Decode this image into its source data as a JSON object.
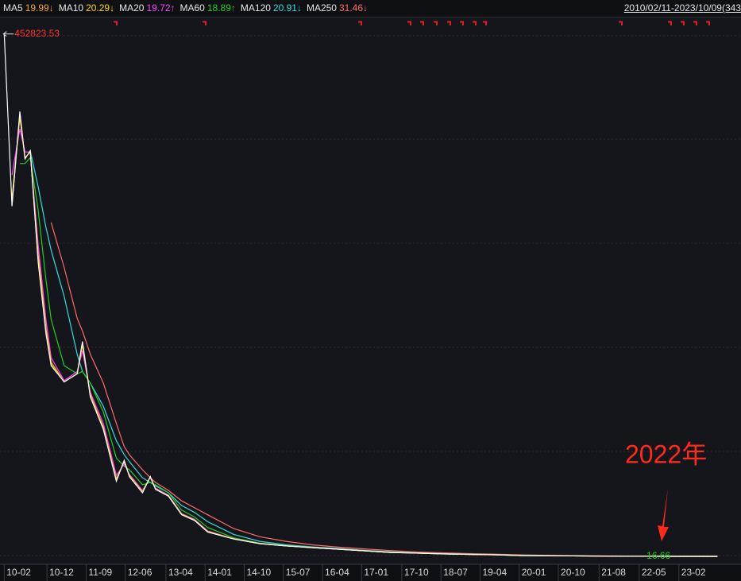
{
  "chart_data": {
    "type": "line",
    "date_range": "2010/02/11-2023/10/09(343",
    "x": [
      2010.1,
      2010.25,
      2010.4,
      2010.5,
      2010.6,
      2010.75,
      2010.9,
      2011.0,
      2011.25,
      2011.5,
      2011.6,
      2011.75,
      2012.0,
      2012.25,
      2012.4,
      2012.5,
      2012.75,
      2012.9,
      2013.0,
      2013.25,
      2013.5,
      2013.75,
      2014.0,
      2014.5,
      2015.0,
      2015.5,
      2016.0,
      2016.5,
      2017.0,
      2017.5,
      2018.0,
      2018.5,
      2019.0,
      2019.5,
      2020.0,
      2020.5,
      2021.0,
      2021.5,
      2022.0,
      2022.5,
      2023.0,
      2023.5,
      2023.77
    ],
    "xlim": [
      2010.02,
      2024.22
    ],
    "xticks": [
      {
        "value": 2010.1,
        "label": "10-02"
      },
      {
        "value": 2010.92,
        "label": "10-12"
      },
      {
        "value": 2011.67,
        "label": "11-09"
      },
      {
        "value": 2012.42,
        "label": "12-06"
      },
      {
        "value": 2013.2,
        "label": "13-04"
      },
      {
        "value": 2013.95,
        "label": "14-01"
      },
      {
        "value": 2014.7,
        "label": "14-10"
      },
      {
        "value": 2015.45,
        "label": "15-07"
      },
      {
        "value": 2016.2,
        "label": "16-04"
      },
      {
        "value": 2016.95,
        "label": "17-01"
      },
      {
        "value": 2017.72,
        "label": "17-10"
      },
      {
        "value": 2018.47,
        "label": "18-07"
      },
      {
        "value": 2019.22,
        "label": "19-04"
      },
      {
        "value": 2019.97,
        "label": "20-01"
      },
      {
        "value": 2020.72,
        "label": "20-10"
      },
      {
        "value": 2021.5,
        "label": "21-08"
      },
      {
        "value": 2022.27,
        "label": "22-05"
      },
      {
        "value": 2023.03,
        "label": "23-02"
      }
    ],
    "ylim": [
      0,
      465000
    ],
    "series": [
      {
        "color": "#ffffff",
        "values": [
          452823.53,
          303000,
          385000,
          344000,
          351000,
          255000,
          193000,
          165000,
          151000,
          158000,
          186000,
          138000,
          110000,
          65000,
          83000,
          69000,
          55000,
          69000,
          58000,
          52000,
          36000,
          31000,
          21000,
          15000,
          11000,
          9000,
          7600,
          6200,
          4800,
          3400,
          2800,
          2100,
          1700,
          1400,
          700,
          600,
          400,
          200,
          100,
          40,
          25,
          20,
          20
        ]
      },
      {
        "name": "MA5",
        "latest_label": "19.99↓",
        "color": "#f5a623",
        "values": [
          null,
          305000,
          383000,
          344000,
          351000,
          258000,
          195000,
          166000,
          151000,
          158000,
          185000,
          139000,
          111000,
          66000,
          83000,
          69500,
          55500,
          69000,
          58200,
          52200,
          36200,
          31200,
          21200,
          15000,
          11000,
          9000,
          7600,
          6200,
          4800,
          3400,
          2800,
          2100,
          1700,
          1400,
          700,
          600,
          400,
          200,
          100,
          40,
          25,
          20,
          19.99
        ]
      },
      {
        "name": "MA10",
        "latest_label": "20.29↓",
        "color": "#ffd800",
        "values": [
          null,
          310000,
          380000,
          345000,
          350000,
          262000,
          198000,
          168000,
          151000,
          158000,
          183000,
          140000,
          112000,
          67000,
          82000,
          70000,
          56000,
          69000,
          58500,
          52500,
          36500,
          31500,
          21500,
          15100,
          11050,
          9050,
          7620,
          6220,
          4820,
          3420,
          2810,
          2110,
          1710,
          1410,
          710,
          602,
          402,
          202,
          101,
          40,
          25.2,
          20.1,
          20.29
        ]
      },
      {
        "name": "MA20",
        "latest_label": "19.72↑",
        "color": "#ff44ff",
        "values": [
          null,
          330000,
          370000,
          350000,
          350000,
          270000,
          205000,
          172000,
          152000,
          160000,
          178000,
          142000,
          115000,
          70000,
          80000,
          71000,
          57000,
          68000,
          59000,
          53000,
          37000,
          32000,
          22000,
          15200,
          11100,
          9100,
          7650,
          6250,
          4850,
          3450,
          2820,
          2120,
          1720,
          1420,
          720,
          605,
          405,
          205,
          102,
          41,
          25.5,
          20.3,
          19.72
        ]
      },
      {
        "name": "MA60",
        "latest_label": "18.89↑",
        "color": "#22cc22",
        "values": [
          null,
          null,
          340000,
          340000,
          345000,
          300000,
          240000,
          205000,
          165000,
          158000,
          160000,
          150000,
          125000,
          85000,
          78000,
          75000,
          62000,
          64000,
          62000,
          55000,
          40000,
          34000,
          25000,
          16000,
          11500,
          9300,
          7800,
          6400,
          5000,
          3600,
          2900,
          2200,
          1800,
          1450,
          780,
          620,
          420,
          220,
          110,
          45,
          28,
          21,
          18.89
        ]
      },
      {
        "name": "MA120",
        "latest_label": "20.91↓",
        "color": "#33dddd",
        "values": [
          null,
          null,
          null,
          null,
          351000,
          320000,
          285000,
          265000,
          225000,
          175000,
          160000,
          150000,
          130000,
          100000,
          88000,
          82000,
          68000,
          64000,
          61000,
          55000,
          44000,
          38000,
          30000,
          19000,
          13000,
          10000,
          8200,
          6800,
          5300,
          4000,
          3100,
          2400,
          1900,
          1500,
          900,
          700,
          450,
          250,
          130,
          60,
          35,
          25,
          20.91
        ]
      },
      {
        "name": "MA250",
        "latest_label": "31.46↓",
        "color": "#ff6a6a",
        "values": [
          null,
          null,
          null,
          null,
          null,
          null,
          null,
          289000,
          250000,
          206000,
          195000,
          175000,
          150000,
          115000,
          95000,
          88000,
          75000,
          68000,
          64000,
          57000,
          48000,
          42000,
          36000,
          24000,
          17000,
          13000,
          10000,
          8000,
          6500,
          5000,
          3800,
          3000,
          2400,
          1900,
          1300,
          900,
          600,
          400,
          250,
          120,
          60,
          35,
          31.46
        ]
      }
    ],
    "max_marker": {
      "x": 2010.1,
      "value": 452823.53
    },
    "min_marker": {
      "x": 2022.64,
      "value": 16.66
    },
    "annotation": "2022年"
  }
}
